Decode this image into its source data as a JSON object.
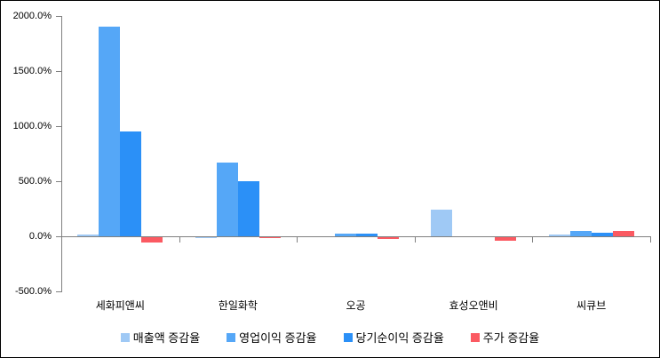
{
  "chart_data": {
    "type": "bar",
    "title": "",
    "categories": [
      "세화피앤씨",
      "한일화학",
      "오공",
      "효성오앤비",
      "씨큐브"
    ],
    "series": [
      {
        "name": "매출액 증감율",
        "color": "#9FC9F5",
        "values": [
          20,
          -10,
          0,
          245,
          15
        ]
      },
      {
        "name": "영업이익 증감율",
        "color": "#55A7F7",
        "values": [
          1900,
          670,
          25,
          0,
          50
        ]
      },
      {
        "name": "당기순이익 증감율",
        "color": "#2B90F7",
        "values": [
          950,
          500,
          25,
          0,
          30
        ]
      },
      {
        "name": "주가 증감율",
        "color": "#FB5A62",
        "values": [
          -50,
          -10,
          -15,
          -30,
          45
        ]
      }
    ],
    "y_axis": {
      "tick_values": [
        2000,
        1500,
        1000,
        500,
        0,
        -500
      ],
      "tick_labels": [
        "2000.0%",
        "1500.0%",
        "1000.0%",
        "500.0%",
        "0.0%",
        "-500.0%"
      ],
      "min": -500,
      "max": 2000,
      "unit": "%"
    },
    "xlabel": "",
    "ylabel": "",
    "grid": false,
    "legend_position": "bottom",
    "axis_color": "#808080",
    "text_color": "#000000",
    "background_color": "#ffffff"
  }
}
